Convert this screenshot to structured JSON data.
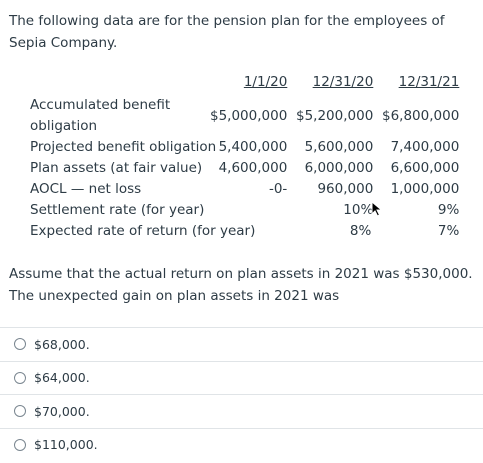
{
  "question": {
    "intro": "The following data are for the pension plan for the employees of Sepia Company.",
    "headers": [
      "1/1/20",
      "12/31/20",
      "12/31/21"
    ],
    "rows": [
      {
        "label": "Accumulated benefit obligation",
        "values": [
          "$5,000,000",
          "$5,200,000",
          "$6,800,000"
        ]
      },
      {
        "label": "Projected benefit obligation",
        "values": [
          "5,400,000",
          "5,600,000",
          "7,400,000"
        ]
      },
      {
        "label": "Plan assets (at fair value)",
        "values": [
          "4,600,000",
          "6,000,000",
          "6,600,000"
        ]
      },
      {
        "label": "AOCL — net loss",
        "values": [
          "-0-",
          "960,000",
          "1,000,000"
        ]
      },
      {
        "label": "Settlement rate (for year)",
        "values": [
          "",
          "10%",
          "9%"
        ]
      },
      {
        "label": "Expected rate of return (for year)",
        "values": [
          "",
          "8%",
          "7%"
        ]
      }
    ],
    "prompt": "Assume that the actual return on plan assets in 2021 was $530,000. The unexpected gain on plan assets in 2021 was"
  },
  "answers": [
    {
      "label": "$68,000."
    },
    {
      "label": "$64,000."
    },
    {
      "label": "$70,000."
    },
    {
      "label": "$110,000."
    }
  ]
}
